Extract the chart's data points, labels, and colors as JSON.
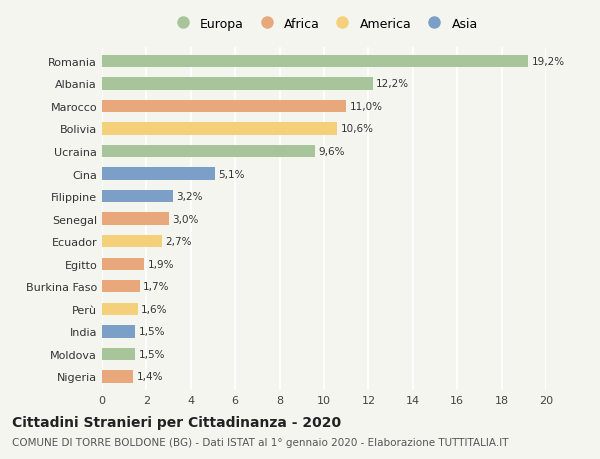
{
  "countries": [
    "Romania",
    "Albania",
    "Marocco",
    "Bolivia",
    "Ucraina",
    "Cina",
    "Filippine",
    "Senegal",
    "Ecuador",
    "Egitto",
    "Burkina Faso",
    "Perù",
    "India",
    "Moldova",
    "Nigeria"
  ],
  "values": [
    19.2,
    12.2,
    11.0,
    10.6,
    9.6,
    5.1,
    3.2,
    3.0,
    2.7,
    1.9,
    1.7,
    1.6,
    1.5,
    1.5,
    1.4
  ],
  "labels": [
    "19,2%",
    "12,2%",
    "11,0%",
    "10,6%",
    "9,6%",
    "5,1%",
    "3,2%",
    "3,0%",
    "2,7%",
    "1,9%",
    "1,7%",
    "1,6%",
    "1,5%",
    "1,5%",
    "1,4%"
  ],
  "continents": [
    "Europa",
    "Europa",
    "Africa",
    "America",
    "Europa",
    "Asia",
    "Asia",
    "Africa",
    "America",
    "Africa",
    "Africa",
    "America",
    "Asia",
    "Europa",
    "Africa"
  ],
  "colors": {
    "Europa": "#a8c49a",
    "Africa": "#e8a87c",
    "America": "#f5d07a",
    "Asia": "#7b9fc7"
  },
  "legend_order": [
    "Europa",
    "Africa",
    "America",
    "Asia"
  ],
  "title": "Cittadini Stranieri per Cittadinanza - 2020",
  "subtitle": "COMUNE DI TORRE BOLDONE (BG) - Dati ISTAT al 1° gennaio 2020 - Elaborazione TUTTITALIA.IT",
  "xlim": [
    0,
    20
  ],
  "xticks": [
    0,
    2,
    4,
    6,
    8,
    10,
    12,
    14,
    16,
    18,
    20
  ],
  "background_color": "#f5f5f0",
  "grid_color": "#ffffff",
  "title_fontsize": 10,
  "subtitle_fontsize": 7.5,
  "label_fontsize": 7.5,
  "tick_fontsize": 8,
  "legend_fontsize": 9,
  "bar_height": 0.55
}
